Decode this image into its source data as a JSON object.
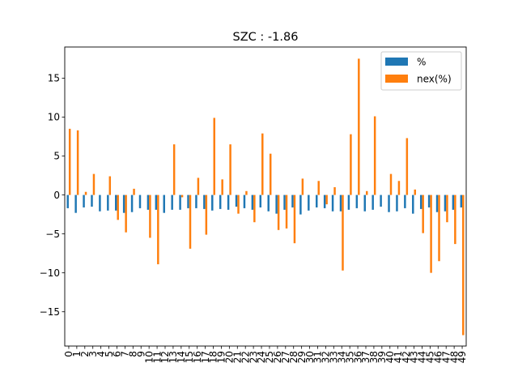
{
  "chart_data": {
    "type": "bar",
    "title": "SZC : -1.86",
    "xlabel": "",
    "ylabel": "",
    "ylim": [
      -19.4,
      19.0
    ],
    "yticks": [
      -15,
      -10,
      -5,
      0,
      5,
      10,
      15
    ],
    "grid": false,
    "legend_position": "top-right",
    "categories": [
      "0",
      "1",
      "2",
      "3",
      "4",
      "5",
      "6",
      "7",
      "8",
      "9",
      "10",
      "11",
      "12",
      "13",
      "14",
      "15",
      "16",
      "17",
      "18",
      "19",
      "20",
      "21",
      "22",
      "23",
      "24",
      "25",
      "26",
      "27",
      "28",
      "29",
      "30",
      "31",
      "32",
      "33",
      "34",
      "35",
      "36",
      "37",
      "38",
      "39",
      "40",
      "41",
      "42",
      "43",
      "44",
      "45",
      "46",
      "47",
      "48",
      "49"
    ],
    "series": [
      {
        "name": "%",
        "color": "#1f77b4",
        "values": [
          -1.7,
          -2.3,
          -1.6,
          -1.5,
          -2.1,
          -2.0,
          -2.0,
          -2.3,
          -2.2,
          -1.7,
          -1.9,
          -1.9,
          -2.3,
          -1.9,
          -1.9,
          -1.7,
          -1.7,
          -1.8,
          -2.0,
          -1.8,
          -1.9,
          -1.5,
          -1.7,
          -1.9,
          -1.6,
          -2.1,
          -2.4,
          -1.9,
          -1.6,
          -2.5,
          -2.0,
          -1.6,
          -1.7,
          -2.1,
          -2.1,
          -1.9,
          -1.7,
          -2.1,
          -1.9,
          -1.5,
          -2.2,
          -2.1,
          -1.7,
          -2.4,
          -1.8,
          -1.6,
          -2.2,
          -2.1,
          -1.9,
          -1.6
        ]
      },
      {
        "name": "nex(%)",
        "color": "#ff7f0e",
        "values": [
          8.5,
          8.3,
          0.4,
          2.7,
          0.0,
          2.4,
          -3.2,
          -4.8,
          0.8,
          0.0,
          -5.5,
          -8.9,
          0.0,
          6.5,
          -0.3,
          -6.9,
          2.2,
          -5.1,
          9.9,
          2.0,
          6.5,
          -2.4,
          0.5,
          -3.5,
          7.9,
          5.3,
          -4.5,
          -4.3,
          -6.2,
          2.1,
          0.0,
          1.8,
          -1.2,
          1.0,
          -9.7,
          7.8,
          17.5,
          0.5,
          10.1,
          0.0,
          2.7,
          1.8,
          7.3,
          0.7,
          -4.9,
          -10.0,
          -8.5,
          -3.5,
          -6.3,
          -18.0
        ]
      }
    ]
  }
}
